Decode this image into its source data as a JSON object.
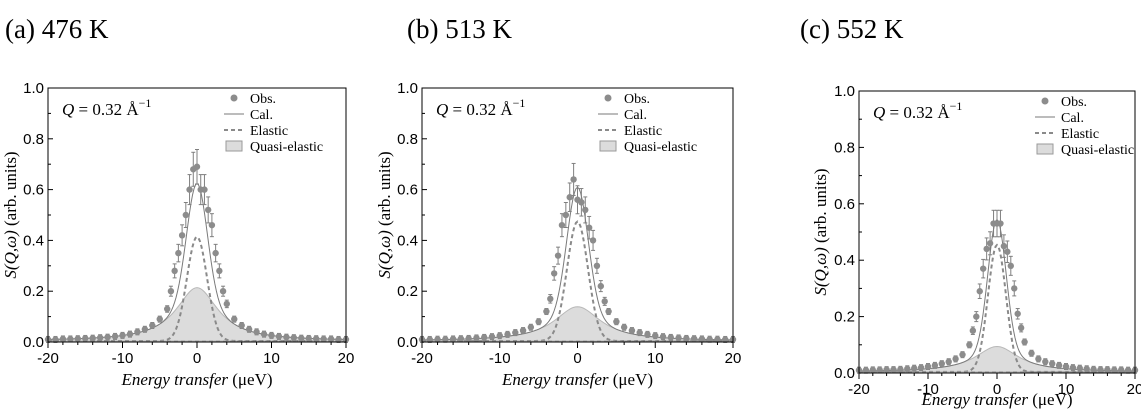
{
  "chart_data": [
    {
      "type": "scatter",
      "title": "(a) 476 K",
      "annotation": {
        "prefix": "Q",
        "text": " = 0.32 Å",
        "sup": "−1"
      },
      "xlabel_main": "Energy transfer",
      "xlabel_unit": " (μeV)",
      "ylabel_main": "S(Q,ω)",
      "ylabel_unit": " (arb. units)",
      "xlim": [
        -20,
        20
      ],
      "ylim": [
        0,
        1.0
      ],
      "xticks": [
        "-20",
        "-10",
        "0",
        "10",
        "20"
      ],
      "yticks": [
        "0.0",
        "0.2",
        "0.4",
        "0.6",
        "0.8",
        "1.0"
      ],
      "legend": [
        "Obs.",
        "Cal.",
        "Elastic",
        "Quasi-elastic"
      ],
      "legend_position": "top-right",
      "elastic_amplitude": 0.41,
      "elastic_sigma": 1.35,
      "quasi_amplitude": 0.21,
      "quasi_gamma": 3.4,
      "series": [
        {
          "name": "Obs.",
          "x": [
            -20,
            -19,
            -18,
            -17,
            -16,
            -15,
            -14,
            -13,
            -12,
            -11,
            -10,
            -9,
            -8,
            -7,
            -6,
            -5,
            -4,
            -3.5,
            -3,
            -2.5,
            -2,
            -1.5,
            -1,
            -0.5,
            0,
            0.5,
            1,
            1.5,
            2,
            2.5,
            3,
            3.5,
            4,
            5,
            6,
            7,
            8,
            9,
            10,
            11,
            12,
            13,
            14,
            15,
            16,
            17,
            18,
            19,
            20
          ],
          "y": [
            0.01,
            0.01,
            0.012,
            0.012,
            0.013,
            0.014,
            0.015,
            0.017,
            0.019,
            0.022,
            0.026,
            0.031,
            0.04,
            0.05,
            0.065,
            0.09,
            0.13,
            0.2,
            0.28,
            0.35,
            0.42,
            0.5,
            0.6,
            0.68,
            0.69,
            0.6,
            0.6,
            0.52,
            0.46,
            0.35,
            0.28,
            0.2,
            0.15,
            0.09,
            0.065,
            0.05,
            0.04,
            0.031,
            0.026,
            0.022,
            0.019,
            0.017,
            0.015,
            0.014,
            0.013,
            0.012,
            0.012,
            0.01,
            0.01
          ]
        }
      ]
    },
    {
      "type": "scatter",
      "title": "(b) 513 K",
      "annotation": {
        "prefix": "Q",
        "text": " = 0.32 Å",
        "sup": "−1"
      },
      "xlabel_main": "Energy transfer",
      "xlabel_unit": " (μeV)",
      "ylabel_main": "S(Q,ω)",
      "ylabel_unit": " (arb. units)",
      "xlim": [
        -20,
        20
      ],
      "ylim": [
        0,
        1.0
      ],
      "xticks": [
        "-20",
        "-10",
        "0",
        "10",
        "20"
      ],
      "yticks": [
        "0.0",
        "0.2",
        "0.4",
        "0.6",
        "0.8",
        "1.0"
      ],
      "legend": [
        "Obs.",
        "Cal.",
        "Elastic",
        "Quasi-elastic"
      ],
      "legend_position": "top-right",
      "elastic_amplitude": 0.47,
      "elastic_sigma": 1.35,
      "quasi_amplitude": 0.135,
      "quasi_gamma": 3.6,
      "series": [
        {
          "name": "Obs.",
          "x": [
            -20,
            -19,
            -18,
            -17,
            -16,
            -15,
            -14,
            -13,
            -12,
            -11,
            -10,
            -9,
            -8,
            -7,
            -6,
            -5,
            -4,
            -3.5,
            -3,
            -2.5,
            -2,
            -1.5,
            -1,
            -0.5,
            0,
            0.5,
            1,
            1.5,
            2,
            2.5,
            3,
            3.5,
            4,
            5,
            6,
            7,
            8,
            9,
            10,
            11,
            12,
            13,
            14,
            15,
            16,
            17,
            18,
            19,
            20
          ],
          "y": [
            0.01,
            0.01,
            0.011,
            0.011,
            0.012,
            0.013,
            0.014,
            0.016,
            0.018,
            0.021,
            0.025,
            0.03,
            0.037,
            0.045,
            0.058,
            0.08,
            0.12,
            0.17,
            0.27,
            0.34,
            0.46,
            0.5,
            0.57,
            0.64,
            0.56,
            0.55,
            0.52,
            0.45,
            0.4,
            0.3,
            0.22,
            0.16,
            0.12,
            0.08,
            0.058,
            0.045,
            0.037,
            0.03,
            0.025,
            0.021,
            0.018,
            0.016,
            0.014,
            0.013,
            0.012,
            0.011,
            0.011,
            0.01,
            0.01
          ]
        }
      ]
    },
    {
      "type": "scatter",
      "title": "(c) 552 K",
      "annotation": {
        "prefix": "Q",
        "text": " = 0.32 Å",
        "sup": "−1"
      },
      "xlabel_main": "Energy transfer",
      "xlabel_unit": " (μeV)",
      "ylabel_main": "S(Q,ω)",
      "ylabel_unit": " (arb. units)",
      "xlim": [
        -20,
        20
      ],
      "ylim": [
        0,
        1.0
      ],
      "xticks": [
        "-20",
        "-10",
        "0",
        "10",
        "20"
      ],
      "yticks": [
        "0.0",
        "0.2",
        "0.4",
        "0.6",
        "0.8",
        "1.0"
      ],
      "legend": [
        "Obs.",
        "Cal.",
        "Elastic",
        "Quasi-elastic"
      ],
      "legend_position": "top-right",
      "elastic_amplitude": 0.45,
      "elastic_sigma": 1.3,
      "quasi_amplitude": 0.09,
      "quasi_gamma": 3.8,
      "series": [
        {
          "name": "Obs.",
          "x": [
            -20,
            -19,
            -18,
            -17,
            -16,
            -15,
            -14,
            -13,
            -12,
            -11,
            -10,
            -9,
            -8,
            -7,
            -6,
            -5,
            -4,
            -3.5,
            -3,
            -2.5,
            -2,
            -1.5,
            -1,
            -0.5,
            0,
            0.5,
            1,
            1.5,
            2,
            2.5,
            3,
            3.5,
            4,
            5,
            6,
            7,
            8,
            9,
            10,
            11,
            12,
            13,
            14,
            15,
            16,
            17,
            18,
            19,
            20
          ],
          "y": [
            0.01,
            0.01,
            0.011,
            0.011,
            0.012,
            0.012,
            0.013,
            0.015,
            0.017,
            0.019,
            0.023,
            0.027,
            0.033,
            0.04,
            0.05,
            0.065,
            0.1,
            0.15,
            0.2,
            0.29,
            0.37,
            0.44,
            0.46,
            0.53,
            0.53,
            0.53,
            0.45,
            0.43,
            0.38,
            0.3,
            0.21,
            0.16,
            0.11,
            0.07,
            0.05,
            0.04,
            0.033,
            0.027,
            0.023,
            0.019,
            0.017,
            0.015,
            0.013,
            0.012,
            0.012,
            0.011,
            0.011,
            0.01,
            0.01
          ]
        }
      ]
    }
  ]
}
